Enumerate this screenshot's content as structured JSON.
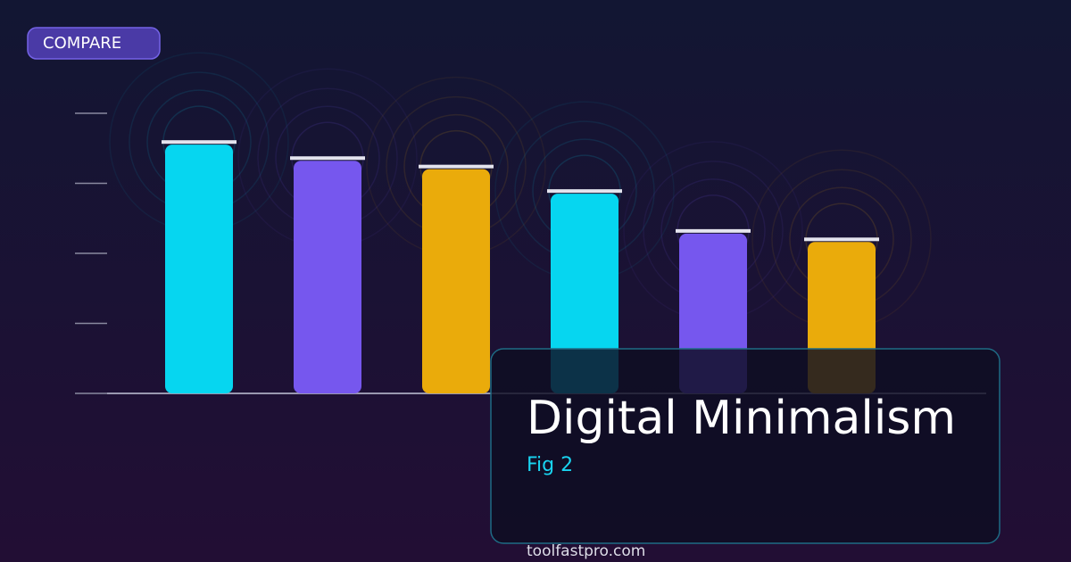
{
  "chart_data": {
    "type": "bar",
    "badge": "COMPARE",
    "title": "Digital Minimalism",
    "subtitle": "Fig 2",
    "footer": "toolfastpro.com",
    "categories": [
      null,
      null,
      null,
      null,
      null,
      null
    ],
    "values": [
      3.59,
      3.36,
      3.24,
      2.89,
      2.32,
      2.2
    ],
    "colors": [
      "#06d6f0",
      "#7657ee",
      "#eaab0b",
      "#06d6f0",
      "#7657ee",
      "#eaab0b"
    ],
    "ylim": [
      0,
      4
    ],
    "yticks": [
      0,
      1,
      2,
      3,
      4
    ]
  }
}
